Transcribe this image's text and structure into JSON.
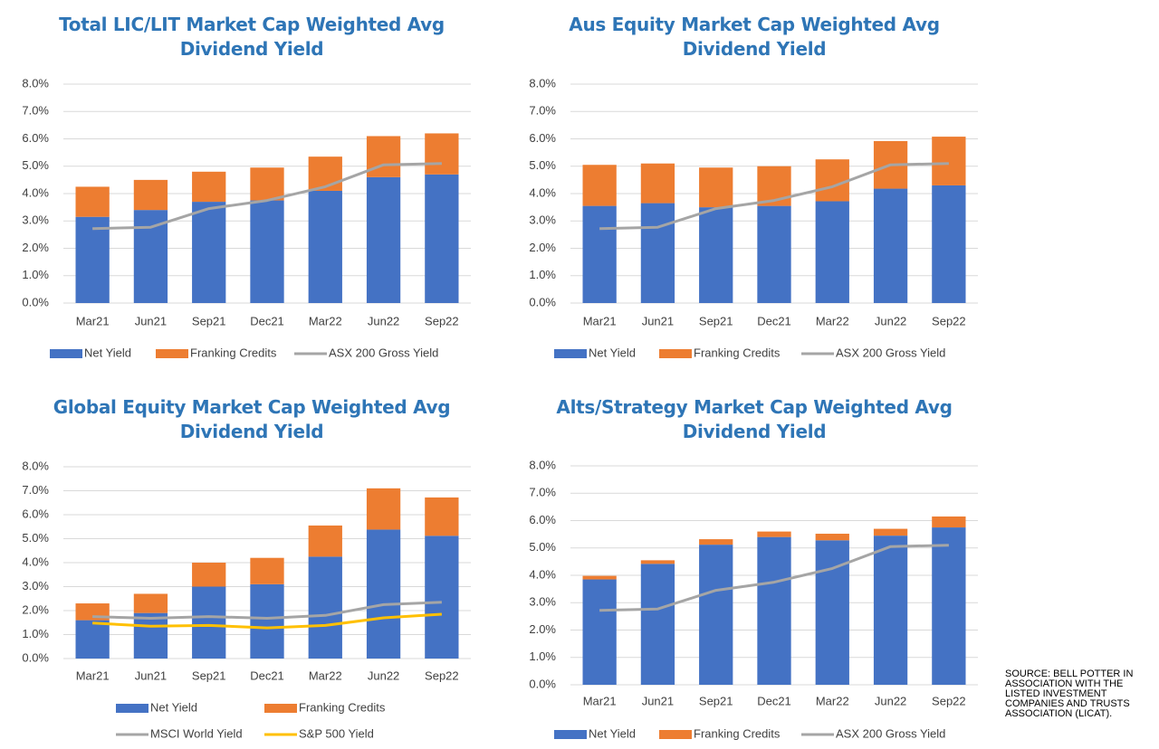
{
  "chart_data": [
    {
      "type": "bar",
      "stacked": true,
      "title": "Total LIC/LIT Market Cap Weighted Avg Dividend Yield",
      "categories": [
        "Mar21",
        "Jun21",
        "Sep21",
        "Dec21",
        "Mar22",
        "Jun22",
        "Sep22"
      ],
      "series": [
        {
          "name": "Net Yield",
          "type": "bar",
          "color": "#4472c4",
          "values": [
            3.15,
            3.4,
            3.7,
            3.75,
            4.1,
            4.6,
            4.7
          ]
        },
        {
          "name": "Franking Credits",
          "type": "bar",
          "color": "#ed7d31",
          "values": [
            1.1,
            1.1,
            1.1,
            1.2,
            1.25,
            1.5,
            1.5
          ]
        },
        {
          "name": "ASX 200 Gross Yield",
          "type": "line",
          "color": "#a5a5a5",
          "values": [
            2.72,
            2.77,
            3.45,
            3.75,
            4.25,
            5.05,
            5.1
          ]
        }
      ],
      "ylim": [
        0,
        8
      ],
      "yticks": [
        {
          "value": 0,
          "label": "0.0%"
        },
        {
          "value": 1,
          "label": "1.0%"
        },
        {
          "value": 2,
          "label": "2.0%"
        },
        {
          "value": 3,
          "label": "3.0%"
        },
        {
          "value": 4,
          "label": "4.0%"
        },
        {
          "value": 5,
          "label": "5.0%"
        },
        {
          "value": 6,
          "label": "6.0%"
        },
        {
          "value": 7,
          "label": "7.0%"
        },
        {
          "value": 8,
          "label": "8.0%"
        }
      ],
      "grid": true,
      "legend": "bottom"
    },
    {
      "type": "bar",
      "stacked": true,
      "title": "Aus Equity Market Cap Weighted Avg Dividend Yield",
      "categories": [
        "Mar21",
        "Jun21",
        "Sep21",
        "Dec21",
        "Mar22",
        "Jun22",
        "Sep22"
      ],
      "series": [
        {
          "name": "Net Yield",
          "type": "bar",
          "color": "#4472c4",
          "values": [
            3.55,
            3.65,
            3.5,
            3.55,
            3.72,
            4.18,
            4.3
          ]
        },
        {
          "name": "Franking Credits",
          "type": "bar",
          "color": "#ed7d31",
          "values": [
            1.5,
            1.45,
            1.45,
            1.45,
            1.53,
            1.74,
            1.78
          ]
        },
        {
          "name": "ASX 200 Gross Yield",
          "type": "line",
          "color": "#a5a5a5",
          "values": [
            2.72,
            2.77,
            3.45,
            3.75,
            4.25,
            5.05,
            5.1
          ]
        }
      ],
      "ylim": [
        0,
        8
      ],
      "yticks": [
        {
          "value": 0,
          "label": "0.0%"
        },
        {
          "value": 1,
          "label": "1.0%"
        },
        {
          "value": 2,
          "label": "2.0%"
        },
        {
          "value": 3,
          "label": "3.0%"
        },
        {
          "value": 4,
          "label": "4.0%"
        },
        {
          "value": 5,
          "label": "5.0%"
        },
        {
          "value": 6,
          "label": "6.0%"
        },
        {
          "value": 7,
          "label": "7.0%"
        },
        {
          "value": 8,
          "label": "8.0%"
        }
      ],
      "grid": true,
      "legend": "bottom"
    },
    {
      "type": "bar",
      "stacked": true,
      "title": "Global Equity Market Cap Weighted Avg Dividend Yield",
      "categories": [
        "Mar21",
        "Jun21",
        "Sep21",
        "Dec21",
        "Mar22",
        "Jun22",
        "Sep22"
      ],
      "series": [
        {
          "name": "Net Yield",
          "type": "bar",
          "color": "#4472c4",
          "values": [
            1.6,
            1.9,
            3.0,
            3.1,
            4.25,
            5.38,
            5.12
          ]
        },
        {
          "name": "Franking Credits",
          "type": "bar",
          "color": "#ed7d31",
          "values": [
            0.7,
            0.8,
            1.0,
            1.1,
            1.3,
            1.72,
            1.6
          ]
        },
        {
          "name": "MSCI World Yield",
          "type": "line",
          "color": "#a5a5a5",
          "values": [
            1.75,
            1.68,
            1.75,
            1.68,
            1.8,
            2.25,
            2.35
          ]
        },
        {
          "name": "S&P 500 Yield",
          "type": "line",
          "color": "#ffc000",
          "values": [
            1.48,
            1.35,
            1.38,
            1.28,
            1.38,
            1.7,
            1.85
          ]
        }
      ],
      "ylim": [
        0,
        8
      ],
      "yticks": [
        {
          "value": 0,
          "label": "0.0%"
        },
        {
          "value": 1,
          "label": "1.0%"
        },
        {
          "value": 2,
          "label": "2.0%"
        },
        {
          "value": 3,
          "label": "3.0%"
        },
        {
          "value": 4,
          "label": "4.0%"
        },
        {
          "value": 5,
          "label": "5.0%"
        },
        {
          "value": 6,
          "label": "6.0%"
        },
        {
          "value": 7,
          "label": "7.0%"
        },
        {
          "value": 8,
          "label": "8.0%"
        }
      ],
      "grid": true,
      "legend": "bottom"
    },
    {
      "type": "bar",
      "stacked": true,
      "title": "Alts/Strategy Market Cap Weighted Avg Dividend Yield",
      "categories": [
        "Mar21",
        "Jun21",
        "Sep21",
        "Dec21",
        "Mar22",
        "Jun22",
        "Sep22"
      ],
      "series": [
        {
          "name": "Net Yield",
          "type": "bar",
          "color": "#4472c4",
          "values": [
            3.85,
            4.42,
            5.12,
            5.4,
            5.28,
            5.45,
            5.75
          ]
        },
        {
          "name": "Franking Credits",
          "type": "bar",
          "color": "#ed7d31",
          "values": [
            0.13,
            0.13,
            0.2,
            0.2,
            0.24,
            0.25,
            0.4
          ]
        },
        {
          "name": "ASX 200 Gross Yield",
          "type": "line",
          "color": "#a5a5a5",
          "values": [
            2.72,
            2.77,
            3.45,
            3.75,
            4.25,
            5.05,
            5.1
          ]
        }
      ],
      "ylim": [
        0,
        8
      ],
      "yticks": [
        {
          "value": 0,
          "label": "0.0%"
        },
        {
          "value": 1,
          "label": "1.0%"
        },
        {
          "value": 2,
          "label": "2.0%"
        },
        {
          "value": 3,
          "label": "3.0%"
        },
        {
          "value": 4,
          "label": "4.0%"
        },
        {
          "value": 5,
          "label": "5.0%"
        },
        {
          "value": 6,
          "label": "6.0%"
        },
        {
          "value": 7,
          "label": "7.0%"
        },
        {
          "value": 8,
          "label": "8.0%"
        }
      ],
      "grid": true,
      "legend": "bottom"
    }
  ],
  "source": "SOURCE: BELL POTTER IN ASSOCIATION WITH THE LISTED INVESTMENT COMPANIES AND TRUSTS ASSOCIATION (LICAT)."
}
